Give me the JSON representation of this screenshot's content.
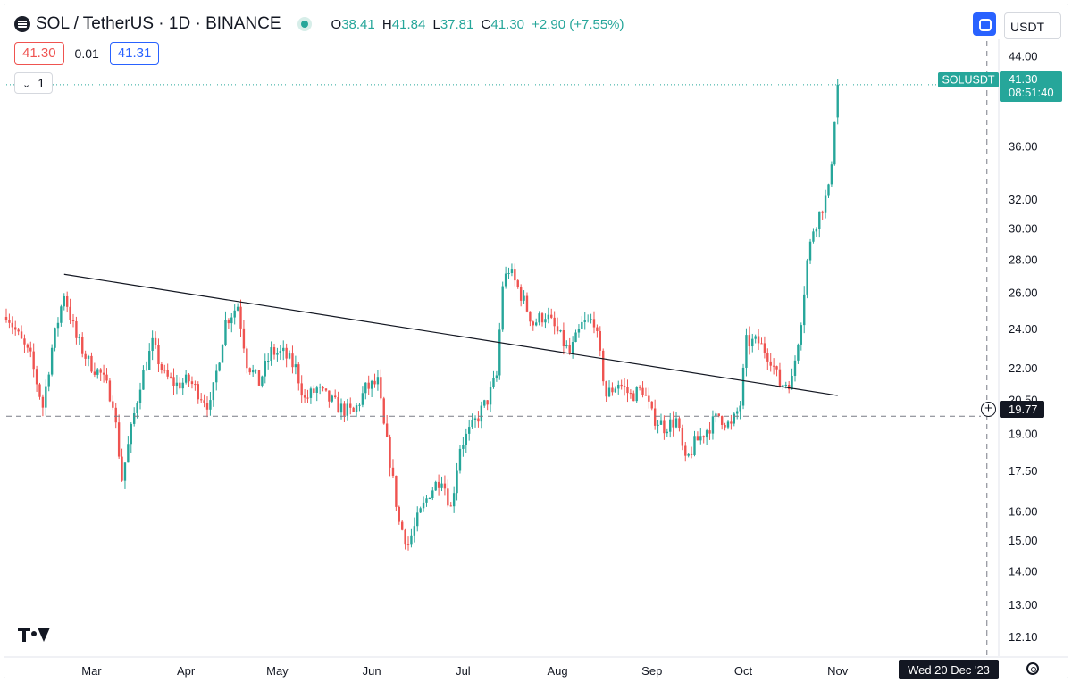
{
  "header": {
    "symbol_title": "SOL / TetherUS · 1D · BINANCE",
    "ohlc": {
      "open_label": "O",
      "open": "38.41",
      "high_label": "H",
      "high": "41.84",
      "low_label": "L",
      "low": "37.81",
      "close_label": "C",
      "close": "41.30",
      "change": "+2.90 (+7.55%)"
    },
    "bid": "41.30",
    "spread": "0.01",
    "ask": "41.31",
    "indicator_count": "1"
  },
  "currency": "USDT",
  "colors": {
    "up": "#26a69a",
    "down": "#ef5350",
    "trendline": "#131722",
    "accent": "#2962ff"
  },
  "chart_data": {
    "type": "candlestick",
    "title": "SOL / TetherUS · 1D · BINANCE",
    "y_scale": "log",
    "ylim": [
      11.6,
      45.5
    ],
    "y_ticks": [
      "44.00",
      "36.00",
      "32.00",
      "30.00",
      "28.00",
      "26.00",
      "24.00",
      "22.00",
      "20.50",
      "19.00",
      "17.50",
      "16.00",
      "15.00",
      "14.00",
      "13.00",
      "12.10"
    ],
    "x_ticks": [
      "Mar",
      "Apr",
      "May",
      "Jun",
      "Jul",
      "Aug",
      "Sep",
      "Oct",
      "Nov"
    ],
    "x_range": [
      "2023-02-01",
      "2023-12-23"
    ],
    "grid": false,
    "last_price": {
      "label": "SOLUSDT",
      "value": "41.30",
      "countdown": "08:51:40"
    },
    "crosshair": {
      "price": "19.77",
      "date": "Wed 20 Dec '23"
    },
    "trendline": {
      "start": {
        "date": "2023-02-20",
        "value": 27.1
      },
      "end": {
        "date": "2023-11-01",
        "value": 20.7
      }
    },
    "anchors": [
      [
        "2023-02-01",
        24.9
      ],
      [
        "2023-02-05",
        23.6
      ],
      [
        "2023-02-09",
        22.5
      ],
      [
        "2023-02-13",
        20.2
      ],
      [
        "2023-02-16",
        23.0
      ],
      [
        "2023-02-20",
        26.0
      ],
      [
        "2023-02-24",
        23.5
      ],
      [
        "2023-02-28",
        22.3
      ],
      [
        "2023-03-04",
        21.7
      ],
      [
        "2023-03-08",
        20.5
      ],
      [
        "2023-03-11",
        17.2
      ],
      [
        "2023-03-13",
        18.5
      ],
      [
        "2023-03-17",
        21.3
      ],
      [
        "2023-03-21",
        23.2
      ],
      [
        "2023-03-25",
        21.6
      ],
      [
        "2023-03-29",
        21.2
      ],
      [
        "2023-04-02",
        21.4
      ],
      [
        "2023-04-06",
        20.7
      ],
      [
        "2023-04-09",
        20.2
      ],
      [
        "2023-04-14",
        24.4
      ],
      [
        "2023-04-18",
        25.3
      ],
      [
        "2023-04-21",
        22.3
      ],
      [
        "2023-04-25",
        21.3
      ],
      [
        "2023-04-29",
        22.8
      ],
      [
        "2023-05-03",
        22.7
      ],
      [
        "2023-05-07",
        22.0
      ],
      [
        "2023-05-10",
        20.5
      ],
      [
        "2023-05-14",
        21.0
      ],
      [
        "2023-05-18",
        20.5
      ],
      [
        "2023-05-22",
        20.1
      ],
      [
        "2023-05-26",
        19.9
      ],
      [
        "2023-05-30",
        21.0
      ],
      [
        "2023-06-03",
        21.3
      ],
      [
        "2023-06-05",
        19.3
      ],
      [
        "2023-06-07",
        17.9
      ],
      [
        "2023-06-10",
        15.6
      ],
      [
        "2023-06-13",
        14.9
      ],
      [
        "2023-06-16",
        15.7
      ],
      [
        "2023-06-20",
        16.7
      ],
      [
        "2023-06-24",
        17.3
      ],
      [
        "2023-06-27",
        16.1
      ],
      [
        "2023-06-30",
        18.5
      ],
      [
        "2023-07-04",
        19.3
      ],
      [
        "2023-07-09",
        20.5
      ],
      [
        "2023-07-12",
        21.6
      ],
      [
        "2023-07-14",
        26.5
      ],
      [
        "2023-07-16",
        27.4
      ],
      [
        "2023-07-20",
        25.9
      ],
      [
        "2023-07-24",
        24.3
      ],
      [
        "2023-07-28",
        24.8
      ],
      [
        "2023-08-01",
        23.8
      ],
      [
        "2023-08-05",
        22.7
      ],
      [
        "2023-08-09",
        24.2
      ],
      [
        "2023-08-13",
        24.5
      ],
      [
        "2023-08-17",
        20.7
      ],
      [
        "2023-08-21",
        21.3
      ],
      [
        "2023-08-25",
        20.7
      ],
      [
        "2023-08-29",
        21.0
      ],
      [
        "2023-09-01",
        19.8
      ],
      [
        "2023-09-05",
        19.3
      ],
      [
        "2023-09-09",
        19.6
      ],
      [
        "2023-09-12",
        17.8
      ],
      [
        "2023-09-15",
        18.6
      ],
      [
        "2023-09-19",
        19.2
      ],
      [
        "2023-09-23",
        19.8
      ],
      [
        "2023-09-27",
        19.3
      ],
      [
        "2023-09-30",
        20.3
      ],
      [
        "2023-10-02",
        23.3
      ],
      [
        "2023-10-06",
        23.3
      ],
      [
        "2023-10-10",
        22.5
      ],
      [
        "2023-10-13",
        21.2
      ],
      [
        "2023-10-17",
        21.4
      ],
      [
        "2023-10-20",
        24.6
      ],
      [
        "2023-10-22",
        27.9
      ],
      [
        "2023-10-24",
        30.0
      ],
      [
        "2023-10-27",
        31.5
      ],
      [
        "2023-10-29",
        32.6
      ],
      [
        "2023-10-30",
        35.0
      ],
      [
        "2023-10-31",
        38.4
      ],
      [
        "2023-11-01",
        41.3
      ]
    ]
  }
}
